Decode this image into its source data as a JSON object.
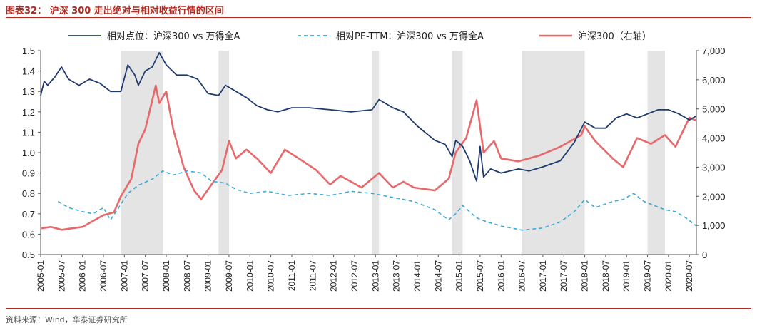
{
  "header": {
    "title": "图表32：  沪深 300 走出绝对与相对收益行情的区间"
  },
  "footer": {
    "source": "资料来源：Wind，华泰证券研究所"
  },
  "chart_data": {
    "type": "line",
    "title": "",
    "xlabel": "",
    "ylabel": "",
    "ylim_left": [
      0.5,
      1.5
    ],
    "ylim_right": [
      0,
      7000
    ],
    "left_ticks": [
      "1.5",
      "1.4",
      "1.3",
      "1.2",
      "1.1",
      "1.0",
      "0.9",
      "0.8",
      "0.7",
      "0.6",
      "0.5"
    ],
    "right_ticks": [
      "7,000",
      "6,000",
      "5,000",
      "4,000",
      "3,000",
      "2,000",
      "1,000",
      "0"
    ],
    "x_tick_labels": [
      "2005-01",
      "2005-07",
      "2006-01",
      "2006-07",
      "2007-01",
      "2007-07",
      "2008-01",
      "2008-07",
      "2009-01",
      "2009-07",
      "2010-01",
      "2010-07",
      "2011-01",
      "2011-07",
      "2012-01",
      "2012-07",
      "2013-01",
      "2013-07",
      "2014-01",
      "2014-07",
      "2015-01",
      "2015-07",
      "2016-01",
      "2016-07",
      "2017-01",
      "2017-07",
      "2018-01",
      "2018-07",
      "2019-01",
      "2019-07",
      "2020-01",
      "2020-07"
    ],
    "x_range": [
      "2005-01",
      "2020-09"
    ],
    "grid": false,
    "legend_position": "top",
    "shaded_periods": [
      {
        "start": "2006-12",
        "end": "2007-12"
      },
      {
        "start": "2009-04",
        "end": "2009-07"
      },
      {
        "start": "2012-12",
        "end": "2013-02"
      },
      {
        "start": "2014-11",
        "end": "2015-02"
      },
      {
        "start": "2016-07",
        "end": "2018-01"
      },
      {
        "start": "2019-07",
        "end": "2019-12"
      }
    ],
    "series": [
      {
        "name": "相对点位：沪深300 vs 万得全A",
        "axis": "left",
        "color": "#1f3b6e",
        "style": "solid",
        "points": [
          [
            "2005-01",
            1.28
          ],
          [
            "2005-02",
            1.35
          ],
          [
            "2005-03",
            1.33
          ],
          [
            "2005-05",
            1.37
          ],
          [
            "2005-07",
            1.42
          ],
          [
            "2005-09",
            1.36
          ],
          [
            "2005-12",
            1.33
          ],
          [
            "2006-03",
            1.36
          ],
          [
            "2006-06",
            1.34
          ],
          [
            "2006-09",
            1.3
          ],
          [
            "2006-12",
            1.3
          ],
          [
            "2007-02",
            1.43
          ],
          [
            "2007-04",
            1.38
          ],
          [
            "2007-05",
            1.33
          ],
          [
            "2007-07",
            1.4
          ],
          [
            "2007-09",
            1.42
          ],
          [
            "2007-11",
            1.49
          ],
          [
            "2008-01",
            1.43
          ],
          [
            "2008-04",
            1.38
          ],
          [
            "2008-07",
            1.38
          ],
          [
            "2008-10",
            1.36
          ],
          [
            "2009-01",
            1.29
          ],
          [
            "2009-04",
            1.28
          ],
          [
            "2009-06",
            1.33
          ],
          [
            "2009-08",
            1.31
          ],
          [
            "2009-12",
            1.27
          ],
          [
            "2010-03",
            1.23
          ],
          [
            "2010-06",
            1.21
          ],
          [
            "2010-09",
            1.2
          ],
          [
            "2011-01",
            1.22
          ],
          [
            "2011-06",
            1.22
          ],
          [
            "2011-12",
            1.21
          ],
          [
            "2012-06",
            1.2
          ],
          [
            "2012-12",
            1.21
          ],
          [
            "2013-02",
            1.26
          ],
          [
            "2013-06",
            1.22
          ],
          [
            "2013-09",
            1.2
          ],
          [
            "2014-01",
            1.13
          ],
          [
            "2014-06",
            1.06
          ],
          [
            "2014-09",
            1.04
          ],
          [
            "2014-11",
            0.98
          ],
          [
            "2014-12",
            1.06
          ],
          [
            "2015-02",
            1.03
          ],
          [
            "2015-04",
            0.96
          ],
          [
            "2015-06",
            0.86
          ],
          [
            "2015-07",
            1.03
          ],
          [
            "2015-08",
            0.88
          ],
          [
            "2015-10",
            0.92
          ],
          [
            "2016-01",
            0.9
          ],
          [
            "2016-06",
            0.92
          ],
          [
            "2016-09",
            0.91
          ],
          [
            "2017-01",
            0.93
          ],
          [
            "2017-06",
            0.96
          ],
          [
            "2017-10",
            1.05
          ],
          [
            "2018-01",
            1.15
          ],
          [
            "2018-04",
            1.12
          ],
          [
            "2018-07",
            1.12
          ],
          [
            "2018-10",
            1.17
          ],
          [
            "2019-01",
            1.19
          ],
          [
            "2019-04",
            1.17
          ],
          [
            "2019-07",
            1.19
          ],
          [
            "2019-10",
            1.21
          ],
          [
            "2020-01",
            1.21
          ],
          [
            "2020-04",
            1.19
          ],
          [
            "2020-07",
            1.16
          ],
          [
            "2020-09",
            1.18
          ]
        ]
      },
      {
        "name": "相对PE-TTM：沪深300 vs 万得全A",
        "axis": "left",
        "color": "#3aa9d6",
        "style": "dashed",
        "points": [
          [
            "2005-06",
            0.76
          ],
          [
            "2005-09",
            0.73
          ],
          [
            "2006-01",
            0.71
          ],
          [
            "2006-04",
            0.7
          ],
          [
            "2006-07",
            0.73
          ],
          [
            "2006-09",
            0.67
          ],
          [
            "2006-11",
            0.72
          ],
          [
            "2007-02",
            0.8
          ],
          [
            "2007-05",
            0.84
          ],
          [
            "2007-09",
            0.87
          ],
          [
            "2007-12",
            0.91
          ],
          [
            "2008-03",
            0.89
          ],
          [
            "2008-07",
            0.91
          ],
          [
            "2008-11",
            0.9
          ],
          [
            "2009-02",
            0.86
          ],
          [
            "2009-06",
            0.85
          ],
          [
            "2009-09",
            0.82
          ],
          [
            "2010-01",
            0.8
          ],
          [
            "2010-06",
            0.81
          ],
          [
            "2010-12",
            0.79
          ],
          [
            "2011-06",
            0.8
          ],
          [
            "2011-12",
            0.79
          ],
          [
            "2012-06",
            0.81
          ],
          [
            "2012-12",
            0.8
          ],
          [
            "2013-06",
            0.78
          ],
          [
            "2013-12",
            0.76
          ],
          [
            "2014-06",
            0.72
          ],
          [
            "2014-10",
            0.67
          ],
          [
            "2014-12",
            0.7
          ],
          [
            "2015-02",
            0.74
          ],
          [
            "2015-06",
            0.68
          ],
          [
            "2015-09",
            0.66
          ],
          [
            "2016-01",
            0.64
          ],
          [
            "2016-07",
            0.62
          ],
          [
            "2017-01",
            0.63
          ],
          [
            "2017-06",
            0.66
          ],
          [
            "2017-10",
            0.71
          ],
          [
            "2018-01",
            0.77
          ],
          [
            "2018-04",
            0.73
          ],
          [
            "2018-09",
            0.76
          ],
          [
            "2018-12",
            0.77
          ],
          [
            "2019-03",
            0.8
          ],
          [
            "2019-06",
            0.76
          ],
          [
            "2019-09",
            0.74
          ],
          [
            "2019-12",
            0.72
          ],
          [
            "2020-03",
            0.71
          ],
          [
            "2020-06",
            0.68
          ],
          [
            "2020-09",
            0.64
          ]
        ]
      },
      {
        "name": "沪深300（右轴）",
        "axis": "right",
        "color": "#e8696b",
        "style": "solid",
        "points": [
          [
            "2005-01",
            900
          ],
          [
            "2005-04",
            950
          ],
          [
            "2005-07",
            850
          ],
          [
            "2005-10",
            900
          ],
          [
            "2006-01",
            950
          ],
          [
            "2006-04",
            1150
          ],
          [
            "2006-07",
            1350
          ],
          [
            "2006-10",
            1450
          ],
          [
            "2006-12",
            2000
          ],
          [
            "2007-03",
            2600
          ],
          [
            "2007-05",
            3800
          ],
          [
            "2007-07",
            4300
          ],
          [
            "2007-10",
            5800
          ],
          [
            "2007-11",
            5200
          ],
          [
            "2008-01",
            5600
          ],
          [
            "2008-03",
            4300
          ],
          [
            "2008-06",
            3000
          ],
          [
            "2008-09",
            2200
          ],
          [
            "2008-11",
            1900
          ],
          [
            "2009-02",
            2400
          ],
          [
            "2009-05",
            2900
          ],
          [
            "2009-07",
            3900
          ],
          [
            "2009-09",
            3300
          ],
          [
            "2009-12",
            3600
          ],
          [
            "2010-03",
            3300
          ],
          [
            "2010-07",
            2800
          ],
          [
            "2010-11",
            3600
          ],
          [
            "2011-03",
            3300
          ],
          [
            "2011-08",
            2900
          ],
          [
            "2011-12",
            2400
          ],
          [
            "2012-03",
            2700
          ],
          [
            "2012-09",
            2300
          ],
          [
            "2012-12",
            2600
          ],
          [
            "2013-02",
            2800
          ],
          [
            "2013-06",
            2300
          ],
          [
            "2013-09",
            2500
          ],
          [
            "2013-12",
            2300
          ],
          [
            "2014-06",
            2200
          ],
          [
            "2014-10",
            2600
          ],
          [
            "2014-12",
            3500
          ],
          [
            "2015-03",
            4000
          ],
          [
            "2015-06",
            5300
          ],
          [
            "2015-08",
            3500
          ],
          [
            "2015-11",
            3900
          ],
          [
            "2016-01",
            3300
          ],
          [
            "2016-06",
            3200
          ],
          [
            "2016-12",
            3400
          ],
          [
            "2017-06",
            3700
          ],
          [
            "2017-12",
            4100
          ],
          [
            "2018-01",
            4400
          ],
          [
            "2018-04",
            3900
          ],
          [
            "2018-09",
            3300
          ],
          [
            "2018-12",
            3000
          ],
          [
            "2019-04",
            4000
          ],
          [
            "2019-08",
            3800
          ],
          [
            "2019-12",
            4100
          ],
          [
            "2020-03",
            3700
          ],
          [
            "2020-07",
            4700
          ],
          [
            "2020-09",
            4600
          ]
        ]
      }
    ]
  }
}
